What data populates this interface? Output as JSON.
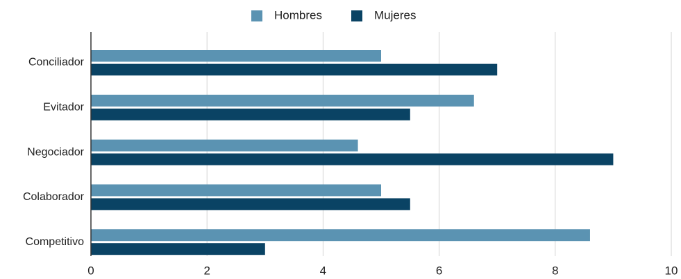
{
  "chart_data": {
    "type": "bar",
    "orientation": "horizontal",
    "categories": [
      "Conciliador",
      "Evitador",
      "Negociador",
      "Colaborador",
      "Competitivo"
    ],
    "series": [
      {
        "name": "Hombres",
        "color": "#5b93b2",
        "values": [
          5,
          6.6,
          4.6,
          5,
          8.6
        ]
      },
      {
        "name": "Mujeres",
        "color": "#0a4364",
        "values": [
          7,
          5.5,
          9,
          5.5,
          3
        ]
      }
    ],
    "xlim": [
      0,
      10
    ],
    "xticks": [
      0,
      2,
      4,
      6,
      8,
      10
    ],
    "grid": "vertical",
    "legend_position": "top-center",
    "title": "",
    "xlabel": "",
    "ylabel": ""
  }
}
